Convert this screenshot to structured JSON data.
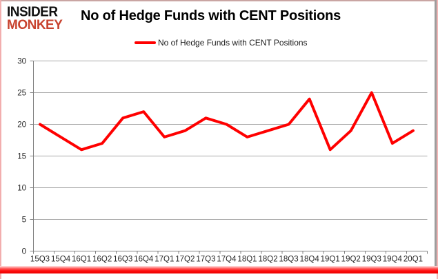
{
  "logo": {
    "line1": "INSIDER",
    "line2": "MONKEY",
    "line2_color": "#c8432f"
  },
  "title": "No of Hedge Funds with CENT Positions",
  "legend": {
    "label": "No of Hedge Funds with CENT Positions",
    "color": "#ff0000"
  },
  "chart_data": {
    "type": "line",
    "title": "No of Hedge Funds with CENT Positions",
    "categories": [
      "15Q3",
      "15Q4",
      "16Q1",
      "16Q2",
      "16Q3",
      "16Q4",
      "17Q1",
      "17Q2",
      "17Q3",
      "17Q4",
      "18Q1",
      "18Q2",
      "18Q3",
      "18Q4",
      "19Q1",
      "19Q2",
      "19Q3",
      "19Q4",
      "20Q1"
    ],
    "series": [
      {
        "name": "No of Hedge Funds with CENT Positions",
        "color": "#ff0000",
        "values": [
          20,
          18,
          16,
          17,
          21,
          22,
          18,
          19,
          21,
          20,
          18,
          19,
          20,
          24,
          16,
          19,
          25,
          17,
          19
        ]
      }
    ],
    "xlabel": "",
    "ylabel": "",
    "ylim": [
      0,
      30
    ],
    "yticks": [
      0,
      5,
      10,
      15,
      20,
      25,
      30
    ],
    "grid": true,
    "legend_position": "top-center"
  },
  "colors": {
    "grid": "#a6a6a6",
    "axis": "#808080",
    "tick_label": "#262626",
    "background": "#ffffff"
  }
}
